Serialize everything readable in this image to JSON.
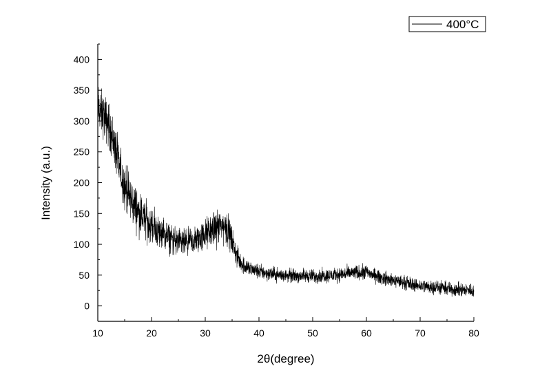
{
  "chart_data": {
    "type": "line",
    "title": "",
    "xlabel": "2θ(degree)",
    "ylabel": "Intensity (a.u.)",
    "xlim": [
      10,
      80
    ],
    "ylim": [
      -25,
      425
    ],
    "x_ticks": [
      10,
      20,
      30,
      40,
      50,
      60,
      70,
      80
    ],
    "x_tick_labels": [
      "10",
      "20",
      "30",
      "40",
      "50",
      "60",
      "70",
      "80"
    ],
    "y_ticks": [
      0,
      50,
      100,
      150,
      200,
      250,
      300,
      350,
      400
    ],
    "y_tick_labels": [
      "0",
      "50",
      "100",
      "150",
      "200",
      "250",
      "300",
      "350",
      "400"
    ],
    "grid": false,
    "legend_position": "top-right",
    "series_color": "#000000",
    "series": [
      {
        "name": "400°C",
        "noise_amplitude": 12,
        "x": [
          10,
          11,
          12,
          13,
          14,
          15,
          16,
          17,
          18,
          19,
          20,
          21,
          22,
          23,
          24,
          25,
          26,
          27,
          28,
          29,
          30,
          31,
          32,
          33,
          34,
          35,
          36,
          37,
          38,
          39,
          40,
          42,
          44,
          46,
          48,
          50,
          52,
          54,
          56,
          58,
          60,
          62,
          64,
          66,
          68,
          70,
          72,
          74,
          76,
          78,
          80
        ],
        "y": [
          320,
          310,
          295,
          265,
          225,
          195,
          175,
          160,
          148,
          138,
          130,
          123,
          117,
          112,
          107,
          103,
          101,
          102,
          105,
          110,
          116,
          122,
          127,
          130,
          128,
          105,
          78,
          67,
          62,
          58,
          56,
          52,
          50,
          49,
          49,
          48,
          49,
          50,
          52,
          54,
          55,
          48,
          43,
          40,
          36,
          33,
          31,
          29,
          27,
          26,
          25
        ]
      }
    ]
  }
}
